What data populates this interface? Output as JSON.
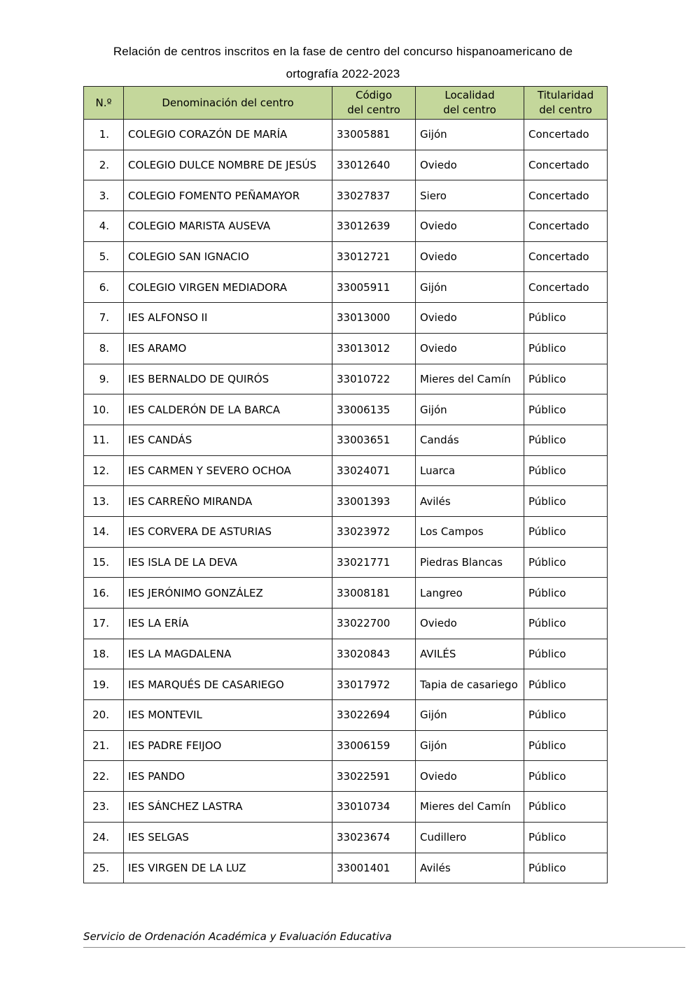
{
  "title_line1": "Relación de centros inscritos en la fase de centro del concurso hispanoamericano de",
  "title_line2": "ortografía 2022-2023",
  "header_color": "#c4d79b",
  "columns": [
    "N.º",
    "Denominación del centro",
    "Código\ndel centro",
    "Localidad\ndel centro",
    "Titularidad\ndel centro"
  ],
  "rows": [
    [
      "1.",
      "COLEGIO CORAZÓN DE MARÍA",
      "33005881",
      "Gijón",
      "Concertado"
    ],
    [
      "2.",
      "COLEGIO DULCE NOMBRE DE JESÚS",
      "33012640",
      "Oviedo",
      "Concertado"
    ],
    [
      "3.",
      "COLEGIO FOMENTO PEÑAMAYOR",
      "33027837",
      "Siero",
      "Concertado"
    ],
    [
      "4.",
      "COLEGIO MARISTA AUSEVA",
      "33012639",
      "Oviedo",
      "Concertado"
    ],
    [
      "5.",
      "COLEGIO SAN IGNACIO",
      "33012721",
      "Oviedo",
      "Concertado"
    ],
    [
      "6.",
      "COLEGIO VIRGEN MEDIADORA",
      "33005911",
      "Gijón",
      "Concertado"
    ],
    [
      "7.",
      "IES ALFONSO II",
      "33013000",
      "Oviedo",
      "Público"
    ],
    [
      "8.",
      "IES ARAMO",
      "33013012",
      "Oviedo",
      "Público"
    ],
    [
      "9.",
      "IES BERNALDO DE QUIRÓS",
      "33010722",
      "Mieres del Camín",
      "Público"
    ],
    [
      "10.",
      "IES CALDERÓN DE LA BARCA",
      "33006135",
      "Gijón",
      "Público"
    ],
    [
      "11.",
      "IES CANDÁS",
      "33003651",
      "Candás",
      "Público"
    ],
    [
      "12.",
      "IES CARMEN Y SEVERO OCHOA",
      "33024071",
      "Luarca",
      "Público"
    ],
    [
      "13.",
      "IES CARREÑO MIRANDA",
      "33001393",
      "Avilés",
      "Público"
    ],
    [
      "14.",
      "IES CORVERA DE ASTURIAS",
      "33023972",
      "Los Campos",
      "Público"
    ],
    [
      "15.",
      "IES ISLA DE LA DEVA",
      "33021771",
      "Piedras Blancas",
      "Público"
    ],
    [
      "16.",
      "IES JERÓNIMO GONZÁLEZ",
      "33008181",
      "Langreo",
      "Público"
    ],
    [
      "17.",
      "IES LA ERÍA",
      "33022700",
      "Oviedo",
      "Público"
    ],
    [
      "18.",
      "IES LA MAGDALENA",
      "33020843",
      "AVILÉS",
      "Público"
    ],
    [
      "19.",
      "IES MARQUÉS DE CASARIEGO",
      "33017972",
      "Tapia de casariego",
      "Público"
    ],
    [
      "20.",
      "IES MONTEVIL",
      "33022694",
      "Gijón",
      "Público"
    ],
    [
      "21.",
      "IES PADRE FEIJOO",
      "33006159",
      "Gijón",
      "Público"
    ],
    [
      "22.",
      "IES PANDO",
      "33022591",
      "Oviedo",
      "Público"
    ],
    [
      "23.",
      "IES SÁNCHEZ LASTRA",
      "33010734",
      "Mieres del Camín",
      "Público"
    ],
    [
      "24.",
      "IES SELGAS",
      "33023674",
      "Cudillero",
      "Público"
    ],
    [
      "25.",
      "IES VIRGEN DE LA LUZ",
      "33001401",
      "Avilés",
      "Público"
    ]
  ],
  "footer": "Servicio de Ordenación Académica y Evaluación Educativa"
}
